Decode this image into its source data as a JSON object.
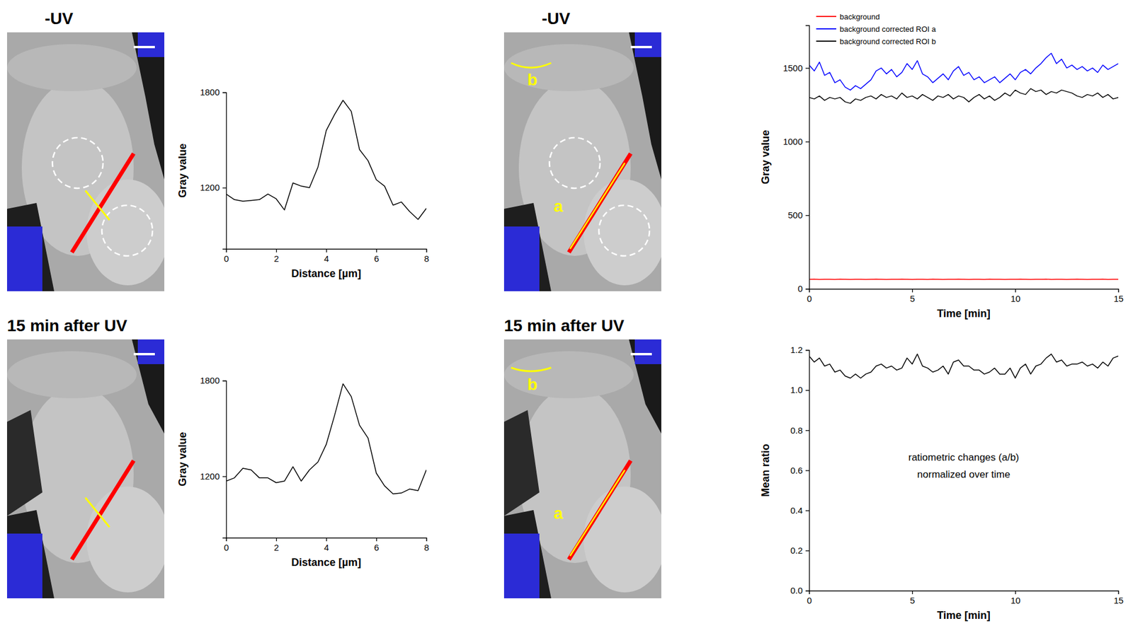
{
  "chart_data": [
    {
      "type": "image",
      "title": "-UV"
    },
    {
      "type": "line",
      "x_label": "Distance [µm]",
      "y_label": "Gray value",
      "x": [
        0,
        0.33,
        0.67,
        1,
        1.33,
        1.67,
        2,
        2.33,
        2.67,
        3,
        3.33,
        3.67,
        4,
        4.33,
        4.67,
        5,
        5.33,
        5.67,
        6,
        6.33,
        6.67,
        7,
        7.33,
        7.67,
        8
      ],
      "values": [
        1160,
        1125,
        1115,
        1120,
        1125,
        1160,
        1130,
        1060,
        1230,
        1210,
        1200,
        1330,
        1560,
        1660,
        1750,
        1680,
        1440,
        1370,
        1250,
        1210,
        1090,
        1110,
        1050,
        1000,
        1070
      ],
      "color": "#000000",
      "xlim": [
        0,
        8
      ],
      "ylim": [
        815,
        1800
      ],
      "xticks": [
        0,
        2,
        4,
        6,
        8
      ],
      "yticks": [
        1200,
        1800
      ]
    },
    {
      "type": "image",
      "title": "-UV",
      "annotations": [
        "a",
        "b"
      ]
    },
    {
      "type": "line",
      "x_label": "Time [min]",
      "y_label": "Gray value",
      "legend": "top-left",
      "x": [
        0,
        0.25,
        0.5,
        0.75,
        1,
        1.25,
        1.5,
        1.75,
        2,
        2.25,
        2.5,
        2.75,
        3,
        3.25,
        3.5,
        3.75,
        4,
        4.25,
        4.5,
        4.75,
        5,
        5.25,
        5.5,
        5.75,
        6,
        6.25,
        6.5,
        6.75,
        7,
        7.25,
        7.5,
        7.75,
        8,
        8.25,
        8.5,
        8.75,
        9,
        9.25,
        9.5,
        9.75,
        10,
        10.25,
        10.5,
        10.75,
        11,
        11.25,
        11.5,
        11.75,
        12,
        12.25,
        12.5,
        12.75,
        13,
        13.25,
        13.5,
        13.75,
        14,
        14.25,
        14.5,
        14.75,
        15
      ],
      "series": [
        {
          "name": "background",
          "color": "#ff0000",
          "values": [
            65,
            66,
            64,
            65,
            65,
            64,
            66,
            65,
            64,
            65,
            65,
            64,
            65,
            66,
            65,
            64,
            65,
            65,
            66,
            65,
            64,
            65,
            65,
            64,
            66,
            65,
            64,
            65,
            65,
            66,
            65,
            64,
            65,
            65,
            64,
            66,
            65,
            65,
            64,
            65,
            65,
            66,
            65,
            64,
            65,
            65,
            66,
            64,
            65,
            65,
            64,
            65,
            66,
            65,
            64,
            65,
            65,
            66,
            64,
            65,
            65
          ]
        },
        {
          "name": "background corrected ROI a",
          "color": "#0000ff",
          "values": [
            1520,
            1480,
            1540,
            1450,
            1470,
            1400,
            1420,
            1370,
            1350,
            1380,
            1360,
            1390,
            1420,
            1480,
            1500,
            1460,
            1490,
            1440,
            1470,
            1530,
            1490,
            1550,
            1460,
            1440,
            1400,
            1430,
            1460,
            1420,
            1480,
            1510,
            1450,
            1470,
            1420,
            1440,
            1400,
            1420,
            1440,
            1400,
            1430,
            1460,
            1420,
            1470,
            1490,
            1460,
            1500,
            1530,
            1570,
            1600,
            1530,
            1560,
            1500,
            1520,
            1490,
            1510,
            1480,
            1500,
            1470,
            1520,
            1490,
            1510,
            1530
          ]
        },
        {
          "name": "background corrected ROI b",
          "color": "#000000",
          "values": [
            1300,
            1290,
            1310,
            1280,
            1300,
            1290,
            1300,
            1270,
            1260,
            1290,
            1280,
            1300,
            1310,
            1290,
            1320,
            1300,
            1310,
            1290,
            1330,
            1300,
            1310,
            1290,
            1320,
            1300,
            1280,
            1310,
            1300,
            1320,
            1290,
            1310,
            1300,
            1270,
            1300,
            1320,
            1290,
            1310,
            1280,
            1300,
            1330,
            1310,
            1350,
            1330,
            1320,
            1360,
            1340,
            1350,
            1320,
            1340,
            1330,
            1350,
            1340,
            1330,
            1310,
            1300,
            1320,
            1310,
            1330,
            1300,
            1320,
            1290,
            1300
          ]
        }
      ],
      "xlim": [
        0,
        15
      ],
      "ylim": [
        0,
        1790
      ],
      "xticks": [
        0,
        5,
        10,
        15
      ],
      "yticks": [
        0,
        500,
        1000,
        1500
      ]
    },
    {
      "type": "image",
      "title": "15 min after UV"
    },
    {
      "type": "line",
      "x_label": "Distance [µm]",
      "y_label": "Gray value",
      "x": [
        0,
        0.33,
        0.67,
        1,
        1.33,
        1.67,
        2,
        2.33,
        2.67,
        3,
        3.33,
        3.67,
        4,
        4.33,
        4.67,
        5,
        5.33,
        5.67,
        6,
        6.33,
        6.67,
        7,
        7.33,
        7.67,
        8
      ],
      "values": [
        1170,
        1190,
        1250,
        1240,
        1190,
        1190,
        1160,
        1170,
        1260,
        1170,
        1240,
        1290,
        1400,
        1580,
        1780,
        1700,
        1520,
        1440,
        1220,
        1140,
        1090,
        1095,
        1120,
        1110,
        1240
      ],
      "color": "#000000",
      "xlim": [
        0,
        8
      ],
      "ylim": [
        815,
        1800
      ],
      "xticks": [
        0,
        2,
        4,
        6,
        8
      ],
      "yticks": [
        1200,
        1800
      ]
    },
    {
      "type": "image",
      "title": "15 min after UV",
      "annotations": [
        "a",
        "b"
      ]
    },
    {
      "type": "line",
      "x_label": "Time [min]",
      "y_label": "Mean ratio",
      "annotations": [
        "ratiometric changes (a/b)",
        "normalized over time"
      ],
      "x": [
        0,
        0.25,
        0.5,
        0.75,
        1,
        1.25,
        1.5,
        1.75,
        2,
        2.25,
        2.5,
        2.75,
        3,
        3.25,
        3.5,
        3.75,
        4,
        4.25,
        4.5,
        4.75,
        5,
        5.25,
        5.5,
        5.75,
        6,
        6.25,
        6.5,
        6.75,
        7,
        7.25,
        7.5,
        7.75,
        8,
        8.25,
        8.5,
        8.75,
        9,
        9.25,
        9.5,
        9.75,
        10,
        10.25,
        10.5,
        10.75,
        11,
        11.25,
        11.5,
        11.75,
        12,
        12.25,
        12.5,
        12.75,
        13,
        13.25,
        13.5,
        13.75,
        14,
        14.25,
        14.5,
        14.75,
        15
      ],
      "values": [
        1.17,
        1.14,
        1.16,
        1.12,
        1.13,
        1.09,
        1.1,
        1.07,
        1.06,
        1.08,
        1.06,
        1.08,
        1.09,
        1.12,
        1.13,
        1.11,
        1.12,
        1.1,
        1.11,
        1.16,
        1.13,
        1.18,
        1.12,
        1.11,
        1.09,
        1.1,
        1.12,
        1.08,
        1.14,
        1.15,
        1.12,
        1.12,
        1.1,
        1.1,
        1.08,
        1.09,
        1.11,
        1.08,
        1.08,
        1.11,
        1.06,
        1.11,
        1.13,
        1.08,
        1.12,
        1.13,
        1.16,
        1.18,
        1.14,
        1.15,
        1.12,
        1.13,
        1.13,
        1.14,
        1.12,
        1.13,
        1.11,
        1.14,
        1.12,
        1.16,
        1.17
      ],
      "color": "#000000",
      "xlim": [
        0,
        15
      ],
      "ylim": [
        0,
        1.2
      ],
      "xticks": [
        0,
        5,
        10,
        15
      ],
      "yticks": [
        {
          "value": 0,
          "label": "0.0"
        },
        {
          "value": 0.2,
          "label": "0.2"
        },
        {
          "value": 0.4,
          "label": "0.4"
        },
        {
          "value": 0.6,
          "label": "0.6"
        },
        {
          "value": 0.8,
          "label": "0.8"
        },
        {
          "value": 1.0,
          "label": "1.0"
        },
        {
          "value": 1.2,
          "label": "1.2"
        }
      ]
    }
  ]
}
